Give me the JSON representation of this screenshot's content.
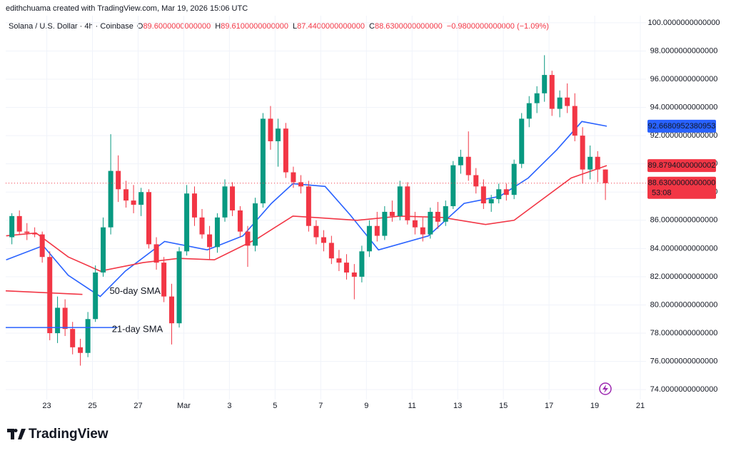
{
  "header": "edithchuama created with TradingView.com, Mar 19, 2026 15:06 UTC",
  "footer": "TradingView",
  "chart_data": {
    "type": "candlestick",
    "symbol": "Solana / U.S. Dollar · 4h · Coinbase",
    "ohlc_legend": [
      {
        "key": "O",
        "value": "89.6000000000000"
      },
      {
        "key": "H",
        "value": "89.6100000000000"
      },
      {
        "key": "L",
        "value": "87.4400000000000"
      },
      {
        "key": "C",
        "value": "88.6300000000000"
      }
    ],
    "change": "−0.9800000000000 (−1.09%)",
    "up_color": "#089981",
    "down_color": "#f23645",
    "grid": true,
    "xlim": [
      21.2,
      49.25
    ],
    "xticks": [
      23,
      25,
      27,
      {
        "value": 29,
        "label": "Mar"
      },
      {
        "value": 31,
        "label": "3"
      },
      {
        "value": 33,
        "label": "5"
      },
      {
        "value": 35,
        "label": "7"
      },
      {
        "value": 37,
        "label": "9"
      },
      {
        "value": 39,
        "label": "11"
      },
      {
        "value": 41,
        "label": "13"
      },
      {
        "value": 43,
        "label": "15"
      },
      {
        "value": 45,
        "label": "17"
      },
      {
        "value": 47,
        "label": "19"
      },
      {
        "value": 49,
        "label": "21"
      }
    ],
    "ylim": [
      73.3,
      100.5
    ],
    "yticks": [
      {
        "value": 74,
        "label": "74.0000000000000"
      },
      {
        "value": 76,
        "label": "76.0000000000000"
      },
      {
        "value": 78,
        "label": "78.0000000000000"
      },
      {
        "value": 80,
        "label": "80.0000000000000"
      },
      {
        "value": 82,
        "label": "82.0000000000000"
      },
      {
        "value": 84,
        "label": "84.0000000000000"
      },
      {
        "value": 86,
        "label": "86.0000000000000"
      },
      {
        "value": 88,
        "label": "88.0000000000000"
      },
      {
        "value": 90,
        "label": "90.0000000000000"
      },
      {
        "value": 92,
        "label": "92.0000000000000"
      },
      {
        "value": 94,
        "label": "94.0000000000000"
      },
      {
        "value": 96,
        "label": "96.0000000000000"
      },
      {
        "value": 98,
        "label": "98.0000000000000"
      },
      {
        "value": 100,
        "label": "100.0000000000000"
      }
    ],
    "x": [
      21.47,
      21.8,
      22.13,
      22.47,
      22.8,
      23.13,
      23.47,
      23.8,
      24.13,
      24.47,
      24.8,
      25.13,
      25.47,
      25.8,
      26.13,
      26.47,
      26.8,
      27.13,
      27.47,
      27.8,
      28.13,
      28.47,
      28.8,
      29.13,
      29.47,
      29.8,
      30.13,
      30.47,
      30.8,
      31.13,
      31.47,
      31.8,
      32.13,
      32.47,
      32.8,
      33.13,
      33.47,
      33.8,
      34.13,
      34.47,
      34.8,
      35.13,
      35.47,
      35.8,
      36.13,
      36.47,
      36.8,
      37.13,
      37.47,
      37.8,
      38.13,
      38.47,
      38.8,
      39.13,
      39.47,
      39.8,
      40.13,
      40.47,
      40.8,
      41.13,
      41.47,
      41.8,
      42.13,
      42.47,
      42.8,
      43.13,
      43.47,
      43.8,
      44.13,
      44.47,
      44.8,
      45.13,
      45.47,
      45.8,
      46.13,
      46.47,
      46.8,
      47.13,
      47.47
    ],
    "open": [
      84.8,
      86.3,
      85.2,
      85.1,
      85.0,
      83.4,
      78.0,
      79.8,
      78.3,
      77.0,
      76.6,
      79.0,
      82.3,
      85.5,
      89.5,
      88.2,
      87.4,
      87.1,
      88.0,
      84.3,
      83.0,
      80.6,
      78.7,
      83.8,
      87.9,
      86.2,
      85.0,
      84.1,
      86.2,
      88.4,
      86.7,
      85.2,
      84.2,
      87.2,
      93.2,
      91.6,
      92.5,
      89.4,
      88.7,
      88.4,
      85.6,
      84.8,
      84.4,
      83.3,
      83.0,
      82.3,
      82.0,
      83.8,
      85.6,
      84.9,
      86.6,
      86.3,
      88.4,
      86.0,
      85.5,
      85.0,
      86.6,
      85.9,
      87.0,
      89.9,
      90.5,
      89.2,
      88.4,
      87.2,
      87.5,
      88.2,
      87.8,
      90.0,
      93.2,
      94.3,
      95.0,
      96.3,
      93.9,
      94.7,
      94.1,
      92.0,
      89.6,
      90.5,
      89.6
    ],
    "high": [
      86.5,
      86.7,
      85.8,
      85.5,
      85.2,
      83.8,
      80.6,
      80.4,
      78.8,
      77.6,
      79.5,
      82.8,
      86.2,
      92.1,
      90.6,
      88.8,
      88.5,
      88.3,
      88.2,
      84.8,
      83.4,
      81.5,
      84.1,
      88.5,
      88.4,
      86.8,
      85.6,
      86.5,
      88.9,
      88.7,
      87.0,
      85.6,
      87.6,
      93.6,
      94.1,
      93.2,
      92.9,
      89.8,
      89.2,
      88.8,
      86.0,
      85.3,
      84.9,
      83.9,
      83.6,
      82.9,
      84.2,
      86.0,
      86.6,
      87.0,
      87.4,
      88.8,
      88.7,
      86.6,
      86.2,
      86.9,
      87.3,
      87.4,
      90.2,
      91.0,
      92.3,
      89.7,
      88.9,
      87.8,
      88.6,
      88.6,
      90.3,
      93.6,
      94.8,
      95.5,
      97.7,
      96.6,
      95.2,
      95.7,
      95.0,
      92.6,
      91.3,
      90.9,
      89.61
    ],
    "low": [
      84.3,
      85.0,
      84.6,
      84.8,
      83.0,
      77.5,
      77.3,
      77.8,
      76.5,
      75.7,
      76.3,
      78.8,
      82.0,
      85.0,
      87.3,
      86.9,
      86.5,
      86.3,
      84.0,
      82.5,
      80.2,
      77.2,
      78.4,
      83.5,
      85.6,
      84.7,
      83.2,
      83.7,
      85.9,
      86.3,
      84.8,
      82.7,
      83.8,
      86.9,
      91.0,
      89.8,
      89.0,
      88.3,
      87.9,
      85.2,
      84.3,
      83.8,
      82.9,
      82.4,
      81.8,
      80.4,
      81.6,
      83.4,
      84.5,
      84.6,
      85.9,
      86.0,
      85.7,
      85.0,
      84.5,
      84.7,
      85.4,
      85.6,
      86.8,
      89.3,
      88.8,
      87.9,
      86.8,
      86.6,
      87.2,
      87.4,
      87.5,
      89.7,
      92.6,
      93.6,
      94.4,
      93.4,
      93.3,
      93.6,
      91.6,
      88.6,
      88.9,
      88.7,
      87.44
    ],
    "close": [
      86.3,
      85.2,
      85.1,
      85.0,
      83.4,
      78.0,
      79.8,
      78.3,
      77.0,
      76.6,
      79.0,
      82.3,
      85.5,
      89.5,
      88.2,
      87.4,
      87.1,
      88.0,
      84.3,
      83.0,
      80.6,
      78.7,
      83.8,
      87.9,
      86.2,
      85.0,
      84.1,
      86.2,
      88.4,
      86.7,
      85.2,
      84.2,
      87.2,
      93.2,
      91.6,
      92.5,
      89.4,
      88.7,
      88.4,
      85.6,
      84.8,
      84.4,
      83.3,
      83.0,
      82.3,
      82.0,
      83.8,
      85.6,
      84.9,
      86.6,
      86.3,
      88.4,
      86.0,
      85.5,
      85.0,
      86.6,
      85.9,
      87.0,
      89.9,
      90.5,
      89.2,
      88.4,
      87.2,
      87.5,
      88.2,
      87.8,
      90.0,
      93.2,
      94.3,
      95.0,
      96.3,
      93.9,
      94.7,
      94.1,
      92.0,
      89.6,
      90.5,
      89.6,
      88.63
    ],
    "lines": [
      {
        "color": "#2962ff",
        "x": [
          21.22,
          22.84,
          23.94,
          25.34,
          26.44,
          28.16,
          30.03,
          31.59,
          32.84,
          33.78,
          35.19,
          36.28,
          37.53,
          39.72,
          41.28,
          42.84,
          44.09,
          45.34,
          46.44,
          47.53
        ],
        "values": [
          83.2,
          84.2,
          82.1,
          80.6,
          82.4,
          84.5,
          83.9,
          84.9,
          87.2,
          88.6,
          88.4,
          86.4,
          83.9,
          84.9,
          87.2,
          87.7,
          89.0,
          91.0,
          93.0,
          92.67
        ]
      },
      {
        "color": "#f23645",
        "x": [
          21.22,
          22.53,
          23.94,
          25.34,
          27.22,
          28.78,
          30.34,
          32.22,
          33.78,
          34.72,
          36.59,
          38.47,
          40.34,
          42.22,
          43.47,
          44.72,
          45.97,
          47.53
        ],
        "values": [
          84.9,
          85.1,
          83.4,
          82.4,
          83.0,
          83.3,
          83.2,
          84.7,
          86.3,
          86.2,
          86.0,
          86.3,
          86.2,
          85.7,
          86.0,
          87.5,
          89.0,
          89.88
        ]
      }
    ],
    "annotations": [
      {
        "text": "50-day SMA",
        "color": "#f23645",
        "x": [
          21.2,
          24.56
        ],
        "y": [
          81.0,
          80.75
        ]
      },
      {
        "text": "21-day SMA",
        "color": "#2962ff",
        "x": [
          21.2,
          26.1
        ],
        "y": [
          78.4,
          78.4
        ]
      }
    ],
    "price_labels": [
      {
        "value": 92.6680952380953,
        "label": "92.6680952380953",
        "color": "#2962ff"
      },
      {
        "value": 89.8794000000002,
        "label": "89.8794000000002",
        "color": "#f23645"
      },
      {
        "value": 88.63,
        "label": "88.6300000000000",
        "color": "#f23645",
        "countdown": "53:08"
      }
    ]
  }
}
